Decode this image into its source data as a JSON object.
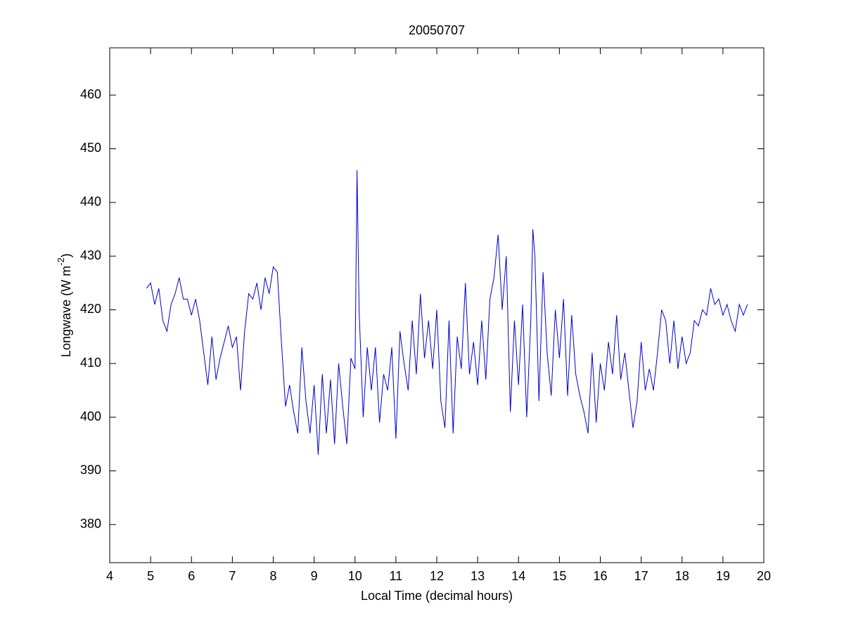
{
  "chart_data": {
    "type": "line",
    "title": "20050707",
    "x_label": "Local Time (decimal hours)",
    "y_label_parts": [
      "Longwave (W m",
      "-2",
      ")"
    ],
    "xlim": [
      4,
      20
    ],
    "xticks": [
      4,
      5,
      6,
      7,
      8,
      9,
      10,
      11,
      12,
      13,
      14,
      15,
      16,
      17,
      18,
      19,
      20
    ],
    "ylim": [
      372.9,
      468.8
    ],
    "yticks": [
      380,
      390,
      400,
      410,
      420,
      430,
      440,
      450,
      460
    ],
    "grid": false,
    "x": [
      4.9,
      5.0,
      5.1,
      5.2,
      5.3,
      5.4,
      5.5,
      5.6,
      5.7,
      5.8,
      5.9,
      6.0,
      6.1,
      6.2,
      6.3,
      6.4,
      6.5,
      6.6,
      6.7,
      6.8,
      6.9,
      7.0,
      7.1,
      7.2,
      7.3,
      7.4,
      7.5,
      7.6,
      7.7,
      7.8,
      7.9,
      8.0,
      8.1,
      8.2,
      8.3,
      8.4,
      8.5,
      8.6,
      8.7,
      8.8,
      8.9,
      9.0,
      9.1,
      9.2,
      9.3,
      9.4,
      9.5,
      9.6,
      9.7,
      9.8,
      9.9,
      10.0,
      10.05,
      10.1,
      10.2,
      10.3,
      10.4,
      10.5,
      10.6,
      10.7,
      10.8,
      10.9,
      11.0,
      11.1,
      11.2,
      11.3,
      11.4,
      11.5,
      11.6,
      11.7,
      11.8,
      11.9,
      12.0,
      12.1,
      12.2,
      12.3,
      12.4,
      12.5,
      12.6,
      12.7,
      12.8,
      12.9,
      13.0,
      13.1,
      13.2,
      13.3,
      13.4,
      13.5,
      13.6,
      13.7,
      13.8,
      13.9,
      14.0,
      14.1,
      14.2,
      14.3,
      14.35,
      14.4,
      14.5,
      14.6,
      14.7,
      14.8,
      14.9,
      15.0,
      15.1,
      15.2,
      15.3,
      15.4,
      15.5,
      15.6,
      15.7,
      15.8,
      15.9,
      16.0,
      16.1,
      16.2,
      16.3,
      16.4,
      16.5,
      16.6,
      16.7,
      16.8,
      16.9,
      17.0,
      17.1,
      17.2,
      17.3,
      17.4,
      17.5,
      17.6,
      17.7,
      17.8,
      17.9,
      18.0,
      18.1,
      18.2,
      18.3,
      18.4,
      18.5,
      18.6,
      18.7,
      18.8,
      18.9,
      19.0,
      19.1,
      19.2,
      19.3,
      19.4,
      19.5,
      19.6
    ],
    "series": [
      {
        "color": "#0000cc",
        "values": [
          424,
          425,
          421,
          424,
          418,
          416,
          421,
          423,
          426,
          422,
          422,
          419,
          422,
          418,
          412,
          406,
          415,
          407,
          411,
          414,
          417,
          413,
          415,
          405,
          416,
          423,
          422,
          425,
          420,
          426,
          423,
          428,
          427,
          414,
          402,
          406,
          401,
          397,
          413,
          403,
          397,
          406,
          393,
          408,
          397,
          407,
          395,
          410,
          402,
          395,
          411,
          409,
          446,
          420,
          400,
          413,
          405,
          413,
          399,
          408,
          405,
          413,
          396,
          416,
          410,
          405,
          418,
          408,
          423,
          411,
          418,
          409,
          420,
          403,
          398,
          418,
          397,
          415,
          409,
          425,
          408,
          414,
          406,
          418,
          407,
          422,
          426,
          434,
          420,
          430,
          401,
          418,
          406,
          421,
          400,
          418,
          435,
          430,
          403,
          427,
          412,
          404,
          420,
          411,
          422,
          404,
          419,
          408,
          404,
          401,
          397,
          412,
          399,
          410,
          405,
          414,
          408,
          419,
          407,
          412,
          405,
          398,
          403,
          414,
          405,
          409,
          405,
          412,
          420,
          418,
          410,
          418,
          409,
          415,
          410,
          412,
          418,
          417,
          420,
          419,
          424,
          421,
          422,
          419,
          421,
          418,
          416,
          421,
          419,
          421
        ]
      }
    ]
  }
}
